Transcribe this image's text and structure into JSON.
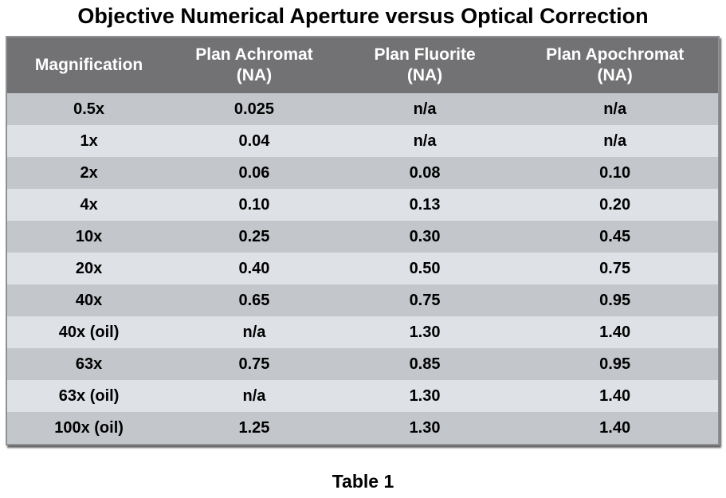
{
  "title": "Objective Numerical Aperture versus Optical Correction",
  "caption": "Table 1",
  "colors": {
    "header_bg": "#727274",
    "row_medium": "#c3c6cb",
    "row_light": "#dee1e6",
    "border": "#8f9295",
    "header_text": "#ffffff",
    "body_text": "#000000"
  },
  "chart_data": {
    "type": "table",
    "title": "Objective Numerical Aperture versus Optical Correction",
    "caption": "Table 1",
    "header": [
      {
        "lines": [
          "Magnification"
        ]
      },
      {
        "lines": [
          "Plan Achromat",
          "(NA)"
        ]
      },
      {
        "lines": [
          "Plan Fluorite",
          "(NA)"
        ]
      },
      {
        "lines": [
          "Plan Apochromat",
          "(NA)"
        ]
      }
    ],
    "columns": [
      "Magnification",
      "Plan Achromat (NA)",
      "Plan Fluorite (NA)",
      "Plan Apochromat (NA)"
    ],
    "rows": [
      [
        "0.5x",
        "0.025",
        "n/a",
        "n/a"
      ],
      [
        "1x",
        "0.04",
        "n/a",
        "n/a"
      ],
      [
        "2x",
        "0.06",
        "0.08",
        "0.10"
      ],
      [
        "4x",
        "0.10",
        "0.13",
        "0.20"
      ],
      [
        "10x",
        "0.25",
        "0.30",
        "0.45"
      ],
      [
        "20x",
        "0.40",
        "0.50",
        "0.75"
      ],
      [
        "40x",
        "0.65",
        "0.75",
        "0.95"
      ],
      [
        "40x (oil)",
        "n/a",
        "1.30",
        "1.40"
      ],
      [
        "63x",
        "0.75",
        "0.85",
        "0.95"
      ],
      [
        "63x (oil)",
        "n/a",
        "1.30",
        "1.40"
      ],
      [
        "100x (oil)",
        "1.25",
        "1.30",
        "1.40"
      ]
    ]
  }
}
